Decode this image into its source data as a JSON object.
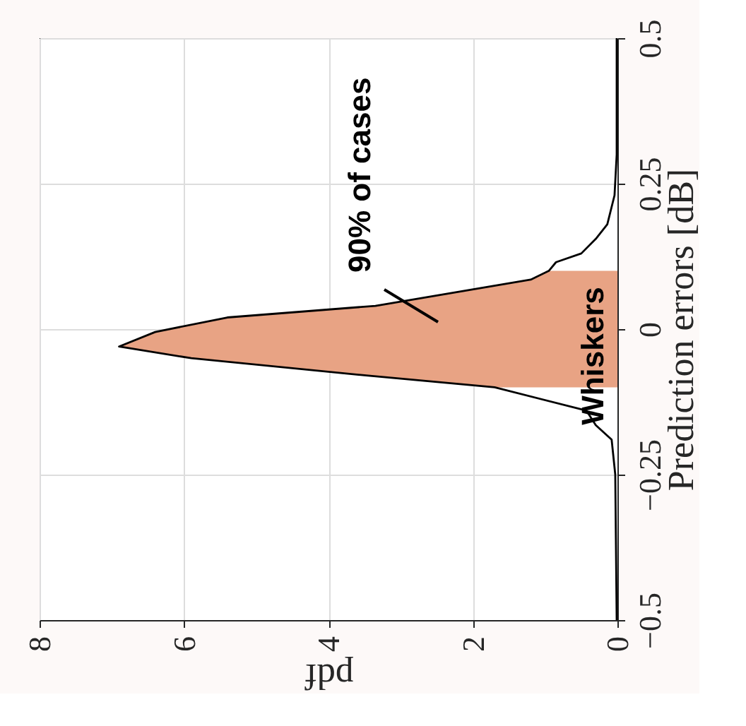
{
  "chart_data": {
    "type": "line",
    "orientation": "horizontal",
    "xlabel": "pdf",
    "ylabel": "Prediction errors [dB]",
    "xlim": [
      8,
      0
    ],
    "xticks": [
      8,
      6,
      4,
      2,
      0
    ],
    "ylim": [
      -0.5,
      0.5
    ],
    "yticks": [
      -0.5,
      -0.25,
      0,
      0.25,
      0.5
    ],
    "grid": true,
    "series": [
      {
        "type": "area",
        "color": "#e8a384",
        "x": [
          -0.1,
          -0.08,
          -0.05,
          -0.03,
          -0.005,
          0.02,
          0.04,
          0.085,
          0.1
        ],
        "values": [
          1.7,
          3.45,
          5.9,
          6.9,
          6.4,
          5.4,
          3.35,
          1.2,
          0.95
        ]
      },
      {
        "type": "line",
        "color": "#000000",
        "x": [
          -0.5,
          -0.25,
          -0.19,
          -0.165,
          -0.14,
          -0.1,
          -0.08,
          -0.05,
          -0.03,
          -0.005,
          0.02,
          0.04,
          0.085,
          0.1,
          0.115,
          0.13,
          0.155,
          0.18,
          0.23,
          0.3,
          0.5
        ],
        "values": [
          0.01,
          0.03,
          0.08,
          0.3,
          0.43,
          1.7,
          3.45,
          5.9,
          6.9,
          6.4,
          5.4,
          3.35,
          1.2,
          0.95,
          0.85,
          0.5,
          0.3,
          0.14,
          0.04,
          0.01,
          0.01
        ]
      }
    ],
    "annotations": [
      "90% of cases",
      "Whiskers"
    ]
  }
}
